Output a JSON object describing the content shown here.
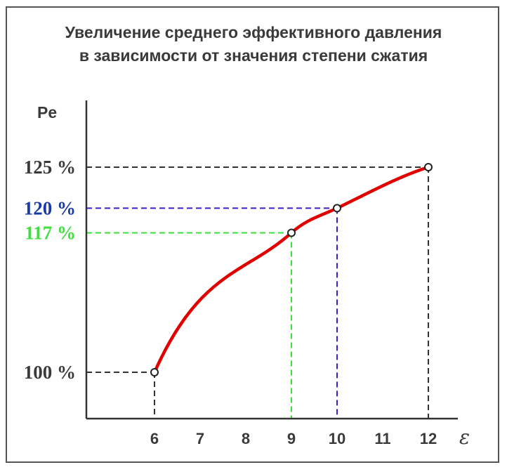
{
  "chart_data": {
    "type": "line",
    "title_lines": [
      "Увеличение среднего эффективного давления",
      "в зависимости от значения степени сжатия"
    ],
    "ylabel": "Pe",
    "xlabel": "ε",
    "x_ticks": [
      6,
      7,
      8,
      9,
      10,
      11,
      12
    ],
    "xlim": [
      4.5,
      13
    ],
    "ylim": [
      94,
      145
    ],
    "curve_color": "#e00000",
    "series": [
      {
        "x": [
          6,
          9,
          10,
          12
        ],
        "y": [
          100,
          117,
          120,
          125
        ]
      }
    ],
    "markers": [
      {
        "x": 6,
        "y": 100,
        "label": "100 %",
        "color": "#3a3a3a"
      },
      {
        "x": 9,
        "y": 117,
        "label": "117 %",
        "color": "#3ee03e"
      },
      {
        "x": 10,
        "y": 120,
        "label": "120 %",
        "color": "#1a3aa8"
      },
      {
        "x": 12,
        "y": 125,
        "label": "125 %",
        "color": "#3a3a3a"
      }
    ],
    "guide_colors": {
      "100": "#333333",
      "117": "#3ee03e",
      "120": "#3a1fd0",
      "125": "#333333"
    }
  }
}
